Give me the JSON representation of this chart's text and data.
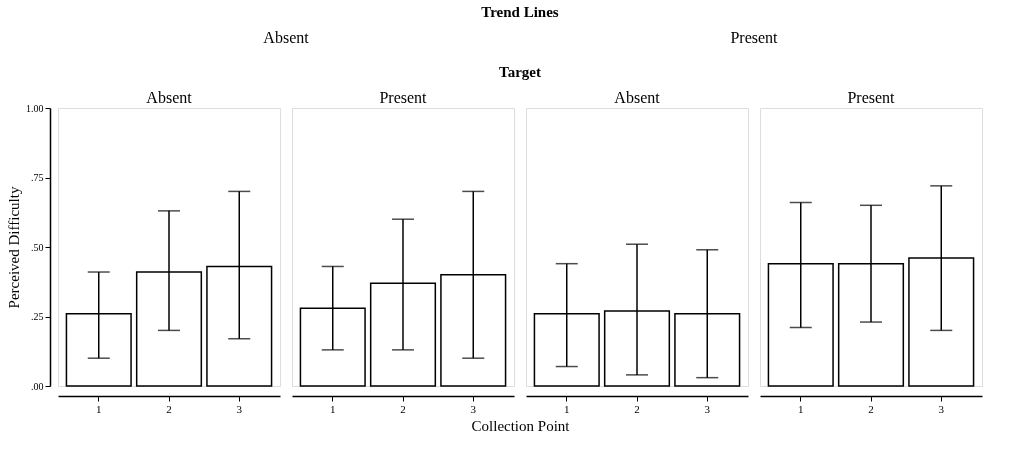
{
  "chart_data": [
    {
      "type": "bar",
      "title": "Absent",
      "ylabel": "Perceived Difficulty",
      "annotations": [
        "Absent"
      ],
      "categories": [
        "1",
        "2",
        "3"
      ],
      "values": [
        0.26,
        0.41,
        0.43
      ],
      "errors": [
        [
          0.1,
          0.41
        ],
        [
          0.2,
          0.63
        ],
        [
          0.17,
          0.7
        ]
      ],
      "color": "#ffffff",
      "ylim": [
        0,
        1
      ],
      "yticks": [
        {
          "value": 0,
          "label": ".00"
        },
        {
          "value": 0.25,
          "label": ".25"
        },
        {
          "value": 0.5,
          "label": ".50"
        },
        {
          "value": 0.75,
          "label": ".75"
        },
        {
          "value": 1,
          "label": "1.00"
        }
      ],
      "grid": false
    },
    {
      "type": "bar",
      "title": "Present",
      "xlabel": "Collection Point",
      "annotations": [
        "Trend Lines",
        "Target"
      ],
      "categories": [
        "1",
        "2",
        "3"
      ],
      "values": [
        0.28,
        0.37,
        0.4
      ],
      "errors": [
        [
          0.13,
          0.43
        ],
        [
          0.13,
          0.6
        ],
        [
          0.1,
          0.7
        ]
      ],
      "color": "#ffffff",
      "ylim": [
        0,
        1
      ],
      "tick_labels": "x",
      "grid": false
    },
    {
      "type": "bar",
      "title": "Absent",
      "annotations": [
        "Present"
      ],
      "categories": [
        "1",
        "2",
        "3"
      ],
      "values": [
        0.26,
        0.27,
        0.26
      ],
      "errors": [
        [
          0.07,
          0.44
        ],
        [
          0.04,
          0.51
        ],
        [
          0.03,
          0.49
        ]
      ],
      "color": "#ffffff",
      "ylim": [
        0,
        1
      ],
      "tick_labels": "x",
      "grid": false
    },
    {
      "type": "bar",
      "title": "Present",
      "categories": [
        "1",
        "2",
        "3"
      ],
      "values": [
        0.44,
        0.44,
        0.46
      ],
      "errors": [
        [
          0.21,
          0.66
        ],
        [
          0.23,
          0.65
        ],
        [
          0.2,
          0.72
        ]
      ],
      "color": "#ffffff",
      "ylim": [
        0,
        1
      ],
      "tick_labels": "x",
      "grid": false
    }
  ]
}
